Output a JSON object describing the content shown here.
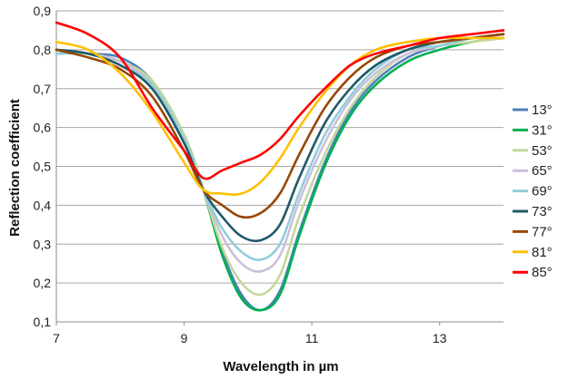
{
  "chart_data": {
    "type": "line",
    "title": "",
    "xlabel": "Wavelength in µm",
    "ylabel": "Reflection coefficient",
    "xlim": [
      7,
      14
    ],
    "ylim": [
      0.1,
      0.9
    ],
    "x_ticks": [
      7,
      9,
      11,
      13
    ],
    "x_tick_labels": [
      "7",
      "9",
      "11",
      "13"
    ],
    "y_ticks": [
      0.1,
      0.2,
      0.3,
      0.4,
      0.5,
      0.6,
      0.7,
      0.8,
      0.9
    ],
    "y_tick_labels": [
      "0,1",
      "0,2",
      "0,3",
      "0,4",
      "0,5",
      "0,6",
      "0,7",
      "0,8",
      "0,9"
    ],
    "grid": "horizontal",
    "legend_position": "right",
    "x": [
      7.0,
      7.5,
      8.0,
      8.5,
      9.0,
      9.3,
      9.6,
      9.9,
      10.2,
      10.5,
      10.8,
      11.2,
      11.6,
      12.0,
      12.5,
      13.0,
      13.5,
      14.0
    ],
    "series": [
      {
        "name": "13°",
        "color": "#4f81bd",
        "values": [
          0.8,
          0.79,
          0.78,
          0.72,
          0.58,
          0.44,
          0.28,
          0.17,
          0.13,
          0.18,
          0.33,
          0.51,
          0.64,
          0.72,
          0.78,
          0.81,
          0.83,
          0.84
        ]
      },
      {
        "name": "31°",
        "color": "#00b050",
        "values": [
          0.79,
          0.79,
          0.77,
          0.72,
          0.58,
          0.44,
          0.27,
          0.16,
          0.13,
          0.17,
          0.32,
          0.5,
          0.63,
          0.71,
          0.77,
          0.8,
          0.82,
          0.83
        ]
      },
      {
        "name": "53°",
        "color": "#c4d79b",
        "values": [
          0.8,
          0.79,
          0.77,
          0.72,
          0.58,
          0.44,
          0.29,
          0.2,
          0.17,
          0.22,
          0.37,
          0.53,
          0.65,
          0.73,
          0.79,
          0.81,
          0.82,
          0.83
        ]
      },
      {
        "name": "65°",
        "color": "#ccc0da",
        "values": [
          0.8,
          0.79,
          0.77,
          0.71,
          0.57,
          0.44,
          0.32,
          0.25,
          0.23,
          0.27,
          0.41,
          0.56,
          0.67,
          0.74,
          0.79,
          0.81,
          0.83,
          0.84
        ]
      },
      {
        "name": "69°",
        "color": "#92cddc",
        "values": [
          0.79,
          0.79,
          0.76,
          0.71,
          0.57,
          0.44,
          0.34,
          0.28,
          0.26,
          0.3,
          0.43,
          0.58,
          0.68,
          0.75,
          0.8,
          0.81,
          0.83,
          0.84
        ]
      },
      {
        "name": "73°",
        "color": "#215968",
        "values": [
          0.8,
          0.79,
          0.76,
          0.7,
          0.56,
          0.44,
          0.37,
          0.32,
          0.31,
          0.35,
          0.47,
          0.61,
          0.7,
          0.76,
          0.8,
          0.82,
          0.83,
          0.84
        ]
      },
      {
        "name": "77°",
        "color": "#974706",
        "values": [
          0.8,
          0.78,
          0.75,
          0.68,
          0.54,
          0.44,
          0.4,
          0.37,
          0.38,
          0.43,
          0.53,
          0.65,
          0.73,
          0.78,
          0.81,
          0.82,
          0.83,
          0.84
        ]
      },
      {
        "name": "81°",
        "color": "#ffc000",
        "values": [
          0.82,
          0.8,
          0.74,
          0.64,
          0.51,
          0.44,
          0.43,
          0.43,
          0.46,
          0.52,
          0.6,
          0.69,
          0.76,
          0.8,
          0.82,
          0.83,
          0.83,
          0.83
        ]
      },
      {
        "name": "85°",
        "color": "#ff0000",
        "values": [
          0.87,
          0.84,
          0.78,
          0.65,
          0.54,
          0.47,
          0.49,
          0.51,
          0.53,
          0.57,
          0.63,
          0.7,
          0.76,
          0.79,
          0.81,
          0.83,
          0.84,
          0.85
        ]
      }
    ]
  }
}
